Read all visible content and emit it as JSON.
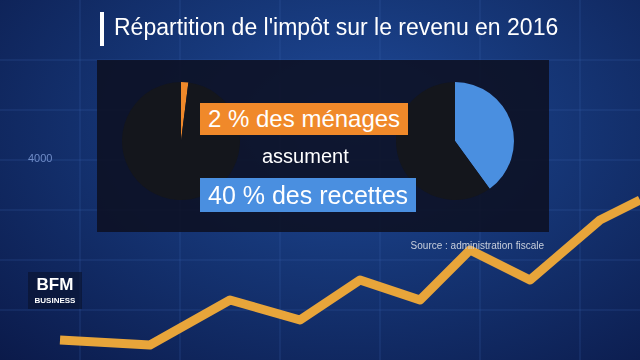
{
  "title": "Répartition de l'impôt sur le revenu en 2016",
  "annotations": [
    "2 % des ménages",
    "assument",
    "40 % des recettes"
  ],
  "source": "Source : administration fiscale",
  "logo": [
    "BFM",
    "BUSINESS"
  ],
  "background_text": "4000",
  "chart_data": [
    {
      "type": "pie",
      "values": [
        2,
        98
      ],
      "colors": [
        "#f0892a",
        "#14161c"
      ],
      "data_labels": false
    },
    {
      "type": "pie",
      "values": [
        40,
        60
      ],
      "colors": [
        "#4a8fe0",
        "#14161c"
      ],
      "data_labels": false
    }
  ]
}
